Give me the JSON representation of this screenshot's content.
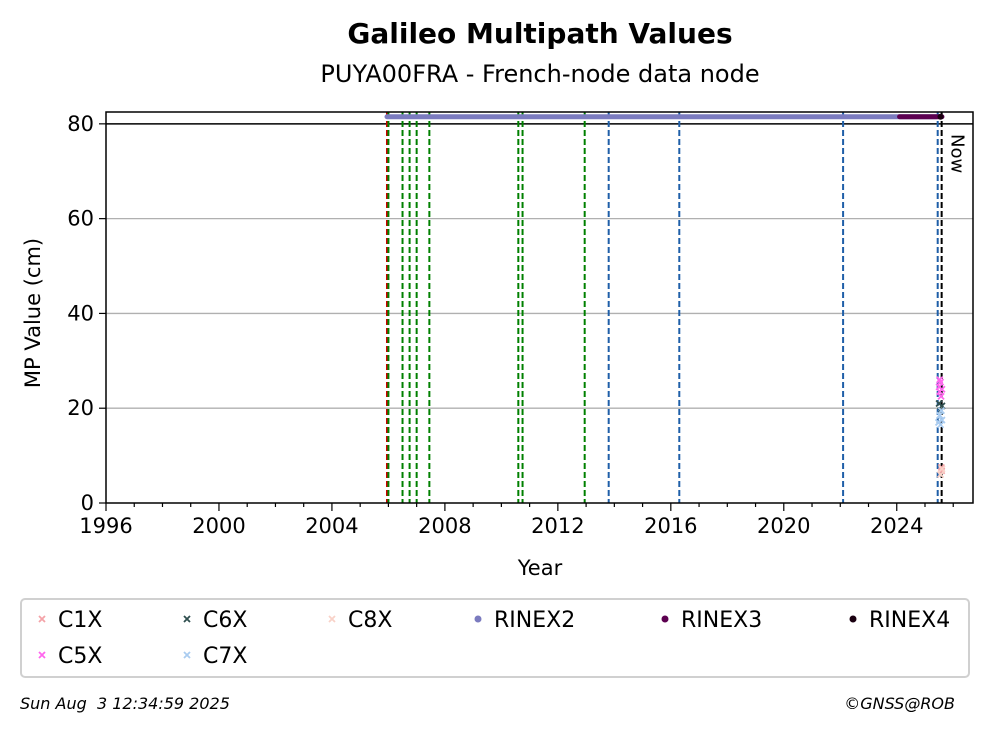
{
  "chart_data": {
    "type": "scatter",
    "title": "Galileo Multipath Values",
    "subtitle": "PUYA00FRA - French-node data node",
    "xlabel": "Year",
    "ylabel": "MP Value (cm)",
    "xlim": [
      1996,
      2026.7
    ],
    "ylim": [
      0,
      82.5
    ],
    "xticks": [
      "1996",
      "2000",
      "2004",
      "2008",
      "2012",
      "2016",
      "2020",
      "2024"
    ],
    "yticks": [
      "0",
      "20",
      "40",
      "60",
      "80"
    ],
    "grid": "horizontal",
    "reference_line_y": 80,
    "now_label": "Now",
    "now_x": 2025.59,
    "vlines": [
      {
        "x": 2005.95,
        "color": "#cc0000",
        "style": "dashed"
      },
      {
        "x": 2006.0,
        "color": "#008000",
        "style": "dashed"
      },
      {
        "x": 2006.5,
        "color": "#008000",
        "style": "dashed"
      },
      {
        "x": 2006.75,
        "color": "#008000",
        "style": "dashed"
      },
      {
        "x": 2007.0,
        "color": "#008000",
        "style": "dashed"
      },
      {
        "x": 2007.45,
        "color": "#008000",
        "style": "dashed"
      },
      {
        "x": 2010.6,
        "color": "#008000",
        "style": "dashed"
      },
      {
        "x": 2010.75,
        "color": "#008000",
        "style": "dashed"
      },
      {
        "x": 2012.95,
        "color": "#008000",
        "style": "dashed"
      },
      {
        "x": 2013.8,
        "color": "#1f5fa8",
        "style": "dashed"
      },
      {
        "x": 2016.3,
        "color": "#1f5fa8",
        "style": "dashed"
      },
      {
        "x": 2022.1,
        "color": "#1f5fa8",
        "style": "dashed"
      },
      {
        "x": 2025.45,
        "color": "#1f5fa8",
        "style": "dashed"
      },
      {
        "x": 2025.59,
        "color": "#000000",
        "style": "dashed"
      }
    ],
    "series": [
      {
        "name": "C1X",
        "marker": "x",
        "color": "#f4a3a8",
        "x": [
          2025.58,
          2025.59
        ],
        "y": [
          7.5,
          6.8
        ]
      },
      {
        "name": "C5X",
        "marker": "x",
        "color": "#ff66ee",
        "x": [
          2025.5,
          2025.52,
          2025.55,
          2025.57,
          2025.6,
          2025.52
        ],
        "y": [
          24.5,
          23.5,
          25.5,
          22.5,
          24.0,
          26.0
        ]
      },
      {
        "name": "C6X",
        "marker": "x",
        "color": "#2f4f4f",
        "x": [
          2025.5,
          2025.55,
          2025.6
        ],
        "y": [
          21.0,
          19.5,
          20.5
        ]
      },
      {
        "name": "C7X",
        "marker": "x",
        "color": "#aaccf0",
        "x": [
          2025.48,
          2025.52,
          2025.55,
          2025.58,
          2025.6
        ],
        "y": [
          17.0,
          18.5,
          16.5,
          19.5,
          17.5
        ]
      },
      {
        "name": "C8X",
        "marker": "x",
        "color": "#f9d2c8",
        "x": [
          2025.55,
          2025.6
        ],
        "y": [
          6.0,
          7.2
        ]
      },
      {
        "name": "RINEX2",
        "marker": "dot",
        "color": "#7b7bbf",
        "x_range": [
          2005.95,
          2025.4
        ],
        "y": 81.5
      },
      {
        "name": "RINEX3",
        "marker": "dot",
        "color": "#5c0050",
        "x_range": [
          2024.1,
          2025.6
        ],
        "y": 81.5
      },
      {
        "name": "RINEX4",
        "marker": "dot",
        "color": "#1a0010",
        "x": [
          2025.55
        ],
        "y": [
          81.5
        ]
      }
    ],
    "legend": {
      "placement": "bottom",
      "entries": [
        {
          "name": "C1X",
          "marker": "x",
          "color": "#f4a3a8"
        },
        {
          "name": "C6X",
          "marker": "x",
          "color": "#2f4f4f"
        },
        {
          "name": "C8X",
          "marker": "x",
          "color": "#f9d2c8"
        },
        {
          "name": "RINEX2",
          "marker": "dot",
          "color": "#7b7bbf"
        },
        {
          "name": "RINEX3",
          "marker": "dot",
          "color": "#5c0050"
        },
        {
          "name": "RINEX4",
          "marker": "dot",
          "color": "#1a0010"
        },
        {
          "name": "C5X",
          "marker": "x",
          "color": "#ff66ee"
        },
        {
          "name": "C7X",
          "marker": "x",
          "color": "#aaccf0"
        }
      ]
    }
  },
  "footer": {
    "timestamp": "Sun Aug  3 12:34:59 2025",
    "credit": "©GNSS@ROB"
  }
}
